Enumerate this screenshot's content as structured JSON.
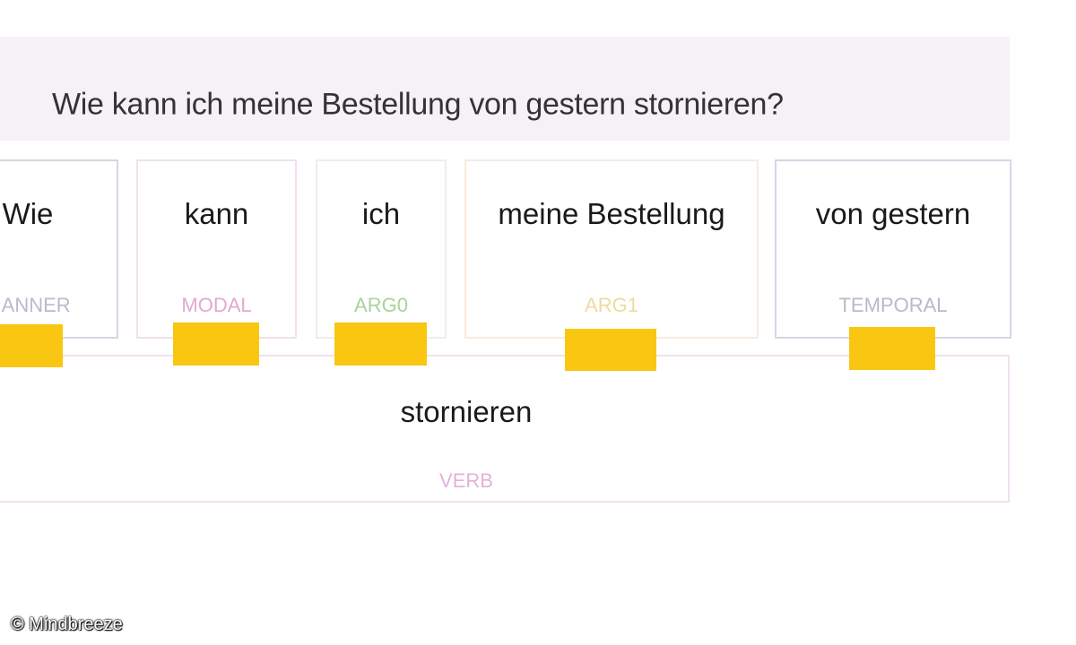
{
  "question": "Wie kann ich meine Bestellung von gestern stornieren?",
  "roles": [
    {
      "word": "Wie",
      "label": "MANNER",
      "color": "#b9b9d0",
      "border": "#d6d6e4"
    },
    {
      "word": "kann",
      "label": "MODAL",
      "color": "#e2a9d0",
      "border": "#f0e0ee"
    },
    {
      "word": "ich",
      "label": "ARG0",
      "color": "#a9d39a",
      "border": "#eeeeea"
    },
    {
      "word": "meine Bestellung",
      "label": "ARG1",
      "color": "#ecdca0",
      "border": "#f8ebe0"
    },
    {
      "word": "von gestern",
      "label": "TEMPORAL",
      "color": "#b9b9c9",
      "border": "#d6d6e6"
    }
  ],
  "verb": {
    "word": "stornieren",
    "label": "VERB"
  },
  "accent": "#f9c712",
  "copyright": "© Mindbreeze"
}
